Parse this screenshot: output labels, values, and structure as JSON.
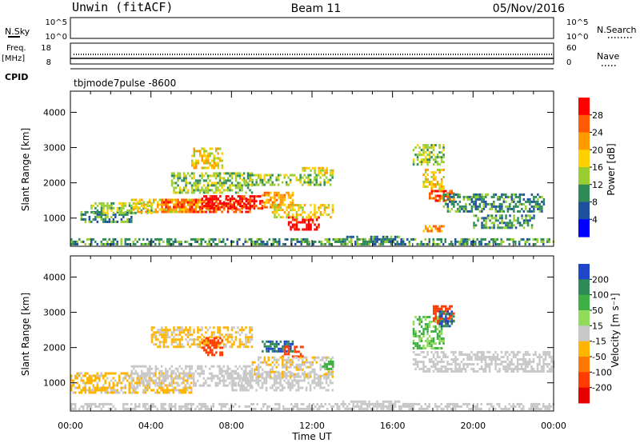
{
  "header": {
    "station": "Unwin (fitACF)",
    "beam": "Beam 11",
    "date": "05/Nov/2016"
  },
  "top_panels": {
    "nsky_label": "N.Sky",
    "nsky_ticks": [
      "10^5",
      "10^0"
    ],
    "nsearch_label": "N.Search",
    "nsearch_ticks": [
      "10^5",
      "10^0"
    ],
    "freq_label": "Freq.",
    "freq_unit": "[MHz]",
    "freq_ticks": [
      "18",
      "8"
    ],
    "nave_label": "Nave",
    "nave_ticks": [
      "60",
      "0"
    ],
    "cpid_label": "CPID",
    "cpid_value": "tbjmode7pulse -8600"
  },
  "chart_data": [
    {
      "type": "heatmap",
      "panel": "power",
      "xlabel": "Time UT",
      "ylabel": "Slant Range [km]",
      "xlim": [
        0,
        24
      ],
      "ylim": [
        200,
        4600
      ],
      "x_ticks": [
        "00:00",
        "04:00",
        "08:00",
        "12:00",
        "16:00",
        "20:00",
        "00:00"
      ],
      "y_ticks": [
        "1000",
        "2000",
        "3000",
        "4000"
      ],
      "colorbar_label": "Power [dB]",
      "colorbar_ticks": [
        "28",
        "24",
        "20",
        "16",
        "12",
        "8",
        "4"
      ],
      "colorbar_colors": [
        "#ff0000",
        "#ff5a00",
        "#ff9a00",
        "#ffd000",
        "#9acd32",
        "#2e8b57",
        "#1e50a0",
        "#0000ff"
      ],
      "regions": [
        {
          "t": [
            0.0,
            24.0
          ],
          "r": [
            240,
            430
          ],
          "value": 8
        },
        {
          "t": [
            0.5,
            3.0
          ],
          "r": [
            880,
            1200
          ],
          "value": 8
        },
        {
          "t": [
            1.0,
            4.0
          ],
          "r": [
            1150,
            1450
          ],
          "value": 12
        },
        {
          "t": [
            3.0,
            7.0
          ],
          "r": [
            1150,
            1550
          ],
          "value": 16
        },
        {
          "t": [
            4.5,
            9.0
          ],
          "r": [
            1200,
            1550
          ],
          "value": 24
        },
        {
          "t": [
            6.5,
            9.5
          ],
          "r": [
            1250,
            1650
          ],
          "value": 28
        },
        {
          "t": [
            9.5,
            11.0
          ],
          "r": [
            1300,
            1750
          ],
          "value": 20
        },
        {
          "t": [
            10.8,
            12.3
          ],
          "r": [
            700,
            1050
          ],
          "value": 28
        },
        {
          "t": [
            10.0,
            13.0
          ],
          "r": [
            1000,
            1400
          ],
          "value": 16
        },
        {
          "t": [
            5.0,
            9.0
          ],
          "r": [
            1700,
            2300
          ],
          "value": 12
        },
        {
          "t": [
            6.0,
            7.5
          ],
          "r": [
            2400,
            3000
          ],
          "value": 16
        },
        {
          "t": [
            8.5,
            13.0
          ],
          "r": [
            1950,
            2250
          ],
          "value": 12
        },
        {
          "t": [
            11.5,
            13.0
          ],
          "r": [
            2300,
            2450
          ],
          "value": 16
        },
        {
          "t": [
            17.8,
            19.0
          ],
          "r": [
            1500,
            1800
          ],
          "value": 24
        },
        {
          "t": [
            17.5,
            18.5
          ],
          "r": [
            1800,
            2400
          ],
          "value": 16
        },
        {
          "t": [
            17.0,
            18.5
          ],
          "r": [
            2500,
            3100
          ],
          "value": 12
        },
        {
          "t": [
            18.5,
            23.5
          ],
          "r": [
            1200,
            1700
          ],
          "value": 8
        },
        {
          "t": [
            20.0,
            23.0
          ],
          "r": [
            750,
            1100
          ],
          "value": 8
        },
        {
          "t": [
            13.5,
            16.5
          ],
          "r": [
            250,
            500
          ],
          "value": 8
        },
        {
          "t": [
            17.5,
            18.5
          ],
          "r": [
            650,
            800
          ],
          "value": 20
        }
      ]
    },
    {
      "type": "heatmap",
      "panel": "velocity",
      "xlabel": "Time UT",
      "ylabel": "Slant Range [km]",
      "xlim": [
        0,
        24
      ],
      "ylim": [
        200,
        4600
      ],
      "x_ticks": [
        "00:00",
        "04:00",
        "08:00",
        "12:00",
        "16:00",
        "20:00",
        "00:00"
      ],
      "y_ticks": [
        "1000",
        "2000",
        "3000",
        "4000"
      ],
      "colorbar_label": "Velocity [m s⁻¹]",
      "colorbar_ticks": [
        "200",
        "100",
        "50",
        "15",
        "-15",
        "-50",
        "-100",
        "-200"
      ],
      "colorbar_colors": [
        "#1e46c8",
        "#2e8b57",
        "#3cb043",
        "#8fdc5a",
        "#c8c8c8",
        "#ffb400",
        "#ff7800",
        "#ff3c00",
        "#e60000"
      ],
      "regions": [
        {
          "t": [
            0.0,
            24.0
          ],
          "r": [
            240,
            430
          ],
          "value": 0
        },
        {
          "t": [
            0.0,
            6.0
          ],
          "r": [
            700,
            1300
          ],
          "value": -20
        },
        {
          "t": [
            3.0,
            9.0
          ],
          "r": [
            900,
            1500
          ],
          "value": 0
        },
        {
          "t": [
            8.0,
            13.0
          ],
          "r": [
            800,
            1300
          ],
          "value": 0
        },
        {
          "t": [
            4.0,
            9.0
          ],
          "r": [
            2000,
            2600
          ],
          "value": -20
        },
        {
          "t": [
            6.5,
            7.5
          ],
          "r": [
            1800,
            2300
          ],
          "value": -150
        },
        {
          "t": [
            9.5,
            11.0
          ],
          "r": [
            1900,
            2200
          ],
          "value": 150
        },
        {
          "t": [
            10.5,
            11.5
          ],
          "r": [
            1750,
            2050
          ],
          "value": -120
        },
        {
          "t": [
            9.0,
            13.0
          ],
          "r": [
            1200,
            1750
          ],
          "value": -10
        },
        {
          "t": [
            12.5,
            13.0
          ],
          "r": [
            1400,
            1700
          ],
          "value": 40
        },
        {
          "t": [
            17.0,
            24.0
          ],
          "r": [
            1300,
            1900
          ],
          "value": 0
        },
        {
          "t": [
            17.0,
            18.5
          ],
          "r": [
            2000,
            2900
          ],
          "value": 30
        },
        {
          "t": [
            18.0,
            19.0
          ],
          "r": [
            2700,
            3200
          ],
          "value": -120
        },
        {
          "t": [
            18.3,
            19.0
          ],
          "r": [
            2600,
            3050
          ],
          "value": 150
        },
        {
          "t": [
            13.5,
            16.5
          ],
          "r": [
            250,
            500
          ],
          "value": 0
        }
      ]
    }
  ]
}
